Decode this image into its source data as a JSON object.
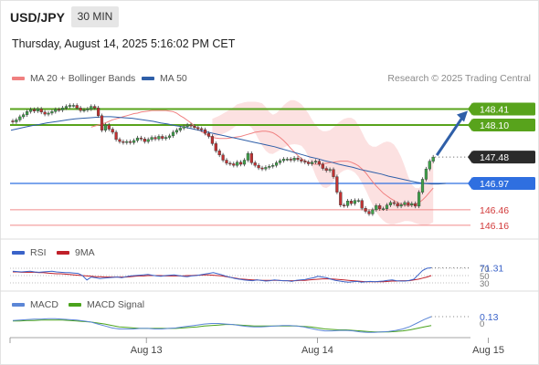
{
  "header": {
    "symbol": "USD/JPY",
    "timeframe": "30 MIN",
    "datetime": "Thursday, August 14, 2025 5:16:02 PM CET"
  },
  "legend": {
    "ma20": "MA 20 + Bollinger Bands",
    "ma50": "MA 50",
    "ma20_color": "#f08080",
    "ma50_color": "#2f5fa8",
    "rsi": "RSI",
    "rsi_ma": "9MA",
    "macd": "MACD",
    "macd_signal": "MACD Signal"
  },
  "credit": "Research © 2025 Trading Central",
  "colors": {
    "resistance": "#58a31c",
    "pivot": "#2f6fe0",
    "support": "#f08a8a",
    "current": "#2b2b2b",
    "up_candle": "#3fa34a",
    "down_candle": "#c03232",
    "arrow": "#2f5fa8",
    "band_fill": "#fcdcdc",
    "rsi_line": "#3a63c9",
    "rsi_ma_line": "#c0202a",
    "macd_line": "#5b86d6",
    "signal_line": "#4aa31c"
  },
  "chart_data": [
    {
      "type": "candlestick",
      "name": "price",
      "ylim": [
        146.0,
        148.6
      ],
      "levels": [
        {
          "value": 148.41,
          "label": "148.41",
          "kind": "resistance"
        },
        {
          "value": 148.1,
          "label": "148.10",
          "kind": "resistance"
        },
        {
          "value": 147.48,
          "label": "147.48",
          "kind": "current"
        },
        {
          "value": 146.97,
          "label": "146.97",
          "kind": "pivot"
        },
        {
          "value": 146.46,
          "label": "146.46",
          "kind": "support"
        },
        {
          "value": 146.16,
          "label": "146.16",
          "kind": "support"
        }
      ],
      "close": [
        148.16,
        148.2,
        148.26,
        148.3,
        148.36,
        148.4,
        148.37,
        148.41,
        148.35,
        148.31,
        148.33,
        148.36,
        148.4,
        148.39,
        148.43,
        148.46,
        148.48,
        148.48,
        148.43,
        148.38,
        148.39,
        148.41,
        148.46,
        148.43,
        148.28,
        148.0,
        148.1,
        148.02,
        147.96,
        147.82,
        147.78,
        147.76,
        147.78,
        147.76,
        147.8,
        147.85,
        147.83,
        147.78,
        147.82,
        147.86,
        147.83,
        147.88,
        147.84,
        147.86,
        147.89,
        147.96,
        148.0,
        148.04,
        148.07,
        148.1,
        148.08,
        148.05,
        148.03,
        148.01,
        147.94,
        147.88,
        147.74,
        147.6,
        147.52,
        147.42,
        147.36,
        147.35,
        147.32,
        147.38,
        147.34,
        147.42,
        147.55,
        147.37,
        147.32,
        147.27,
        147.25,
        147.28,
        147.3,
        147.32,
        147.37,
        147.41,
        147.44,
        147.44,
        147.42,
        147.46,
        147.43,
        147.4,
        147.38,
        147.35,
        147.38,
        147.4,
        147.34,
        147.26,
        147.22,
        147.24,
        147.1,
        146.8,
        146.55,
        146.54,
        146.63,
        146.58,
        146.64,
        146.64,
        146.49,
        146.43,
        146.38,
        146.46,
        146.54,
        146.48,
        146.48,
        146.55,
        146.6,
        146.58,
        146.53,
        146.56,
        146.6,
        146.55,
        146.58,
        146.53,
        146.8,
        147.05,
        147.25,
        147.4,
        147.48
      ],
      "ma20": [
        148.06,
        148.08,
        148.1,
        148.12,
        148.14,
        148.17,
        148.2,
        148.22,
        148.24,
        148.26,
        148.28,
        148.3,
        148.32,
        148.33,
        148.35,
        148.36,
        148.37,
        148.38,
        148.38,
        148.38,
        148.38,
        148.38,
        148.37,
        148.36,
        148.33,
        148.28,
        148.24,
        148.19,
        148.14,
        148.08,
        148.02,
        147.97,
        147.93,
        147.89,
        147.86,
        147.85,
        147.84,
        147.84,
        147.84,
        147.85,
        147.86,
        147.87,
        147.88,
        147.9,
        147.92,
        147.94,
        147.96,
        147.97,
        147.98,
        147.98,
        147.97,
        147.95,
        147.91,
        147.86,
        147.8,
        147.73,
        147.65,
        147.58,
        147.51,
        147.45,
        147.41,
        147.38,
        147.35,
        147.34,
        147.34,
        147.35,
        147.36,
        147.37,
        147.38,
        147.39,
        147.4,
        147.4,
        147.4,
        147.38,
        147.35,
        147.31,
        147.25,
        147.18,
        147.09,
        147.0,
        146.92,
        146.85,
        146.78,
        146.73,
        146.68,
        146.64,
        146.6,
        146.57,
        146.55,
        146.54,
        146.55,
        146.57,
        146.6,
        146.65,
        146.72,
        146.8,
        146.88
      ],
      "ma50": [
        148.0,
        148.03,
        148.06,
        148.09,
        148.11,
        148.14,
        148.16,
        148.18,
        148.2,
        148.22,
        148.23,
        148.24,
        148.25,
        148.26,
        148.26,
        148.25,
        148.24,
        148.23,
        148.21,
        148.19,
        148.17,
        148.14,
        148.12,
        148.09,
        148.07,
        148.04,
        148.01,
        147.98,
        147.95,
        147.92,
        147.89,
        147.86,
        147.83,
        147.8,
        147.77,
        147.74,
        147.71,
        147.68,
        147.64,
        147.6,
        147.56,
        147.52,
        147.48,
        147.45,
        147.41,
        147.38,
        147.34,
        147.31,
        147.28,
        147.24,
        147.21,
        147.18,
        147.15,
        147.11,
        147.08,
        147.05,
        147.02,
        146.99,
        146.97,
        146.96,
        146.96,
        146.97
      ],
      "bb_upper": [
        148.22,
        148.25,
        148.28,
        148.32,
        148.36,
        148.4,
        148.45,
        148.5,
        148.52,
        148.54,
        148.55,
        148.55,
        148.55,
        148.54,
        148.52,
        148.45,
        148.35,
        148.3,
        148.33,
        148.4,
        148.48,
        148.54,
        148.58,
        148.58,
        148.55,
        148.5,
        148.42,
        148.32,
        148.2,
        148.1,
        148.02,
        147.98,
        147.98,
        148.0,
        148.05,
        148.12,
        148.18,
        148.22,
        148.24,
        148.24,
        148.2,
        148.1,
        147.96,
        147.82,
        147.72,
        147.68,
        147.68,
        147.72,
        147.76,
        147.78,
        147.77,
        147.72,
        147.62,
        147.48,
        147.3,
        147.1,
        146.95,
        146.88,
        146.88,
        146.95,
        147.1,
        147.28,
        147.45
      ],
      "bb_lower": [
        147.86,
        147.88,
        147.9,
        147.93,
        147.96,
        148.0,
        148.05,
        148.1,
        148.12,
        148.12,
        148.1,
        148.05,
        147.95,
        147.82,
        147.7,
        147.6,
        147.55,
        147.54,
        147.58,
        147.62,
        147.66,
        147.7,
        147.72,
        147.73,
        147.72,
        147.7,
        147.62,
        147.48,
        147.3,
        147.12,
        146.98,
        146.9,
        146.88,
        146.92,
        147.0,
        147.1,
        147.18,
        147.22,
        147.24,
        147.22,
        147.18,
        147.1,
        146.98,
        146.85,
        146.7,
        146.55,
        146.42,
        146.32,
        146.25,
        146.2,
        146.18,
        146.18,
        146.2,
        146.22,
        146.24,
        146.24,
        146.23,
        146.2,
        146.18,
        146.16,
        146.16,
        146.18,
        146.22
      ],
      "forecast_target": 148.41
    },
    {
      "type": "line",
      "name": "RSI",
      "levels": [
        {
          "value": 70,
          "label": "70"
        },
        {
          "value": 50,
          "label": "50"
        },
        {
          "value": 30,
          "label": "30"
        }
      ],
      "ylim": [
        20,
        85
      ],
      "current_label": "71.31",
      "rsi": [
        62,
        61,
        60,
        61,
        62,
        60,
        59,
        60,
        61,
        62,
        60,
        59,
        58,
        58,
        57,
        56,
        50,
        38,
        46,
        44,
        42,
        43,
        44,
        45,
        46,
        44,
        47,
        49,
        50,
        51,
        52,
        53,
        51,
        49,
        48,
        50,
        51,
        52,
        50,
        48,
        47,
        49,
        50,
        52,
        54,
        56,
        58,
        55,
        52,
        48,
        45,
        42,
        40,
        38,
        37,
        36,
        38,
        37,
        35,
        36,
        38,
        37,
        36,
        36,
        34,
        37,
        38,
        39,
        42,
        44,
        48,
        46,
        44,
        40,
        37,
        35,
        33,
        32,
        33,
        34,
        32,
        33,
        34,
        33,
        34,
        35,
        37,
        38,
        36,
        35,
        35,
        37,
        40,
        52,
        64,
        70,
        71.31
      ],
      "ma9": [
        60,
        60,
        59,
        59,
        59,
        59,
        58,
        58,
        57,
        56,
        55,
        55,
        54,
        53,
        52,
        51,
        50,
        49,
        48,
        47,
        47,
        46,
        46,
        46,
        46,
        46,
        46,
        47,
        48,
        49,
        49,
        50,
        50,
        50,
        50,
        49,
        49,
        49,
        49,
        49,
        50,
        50,
        51,
        51,
        52,
        52,
        51,
        50,
        49,
        47,
        45,
        43,
        41,
        40,
        39,
        38,
        38,
        37,
        37,
        37,
        37,
        37,
        36,
        36,
        36,
        36,
        37,
        37,
        38,
        39,
        40,
        41,
        41,
        41,
        40,
        39,
        38,
        37,
        36,
        35,
        34,
        33,
        33,
        33,
        33,
        33,
        34,
        35,
        35,
        36,
        36,
        36,
        38,
        40,
        43,
        46,
        50
      ]
    },
    {
      "type": "line",
      "name": "MACD",
      "levels": [
        {
          "value": 0,
          "label": "0"
        }
      ],
      "ylim": [
        -0.35,
        0.22
      ],
      "current_label": "0.13",
      "macd": [
        0.05,
        0.06,
        0.07,
        0.08,
        0.08,
        0.09,
        0.09,
        0.08,
        0.07,
        0.06,
        0.04,
        0.02,
        -0.02,
        -0.06,
        -0.1,
        -0.12,
        -0.12,
        -0.12,
        -0.11,
        -0.11,
        -0.12,
        -0.12,
        -0.11,
        -0.1,
        -0.08,
        -0.06,
        -0.04,
        -0.02,
        -0.01,
        -0.01,
        -0.02,
        -0.03,
        -0.05,
        -0.07,
        -0.08,
        -0.08,
        -0.07,
        -0.06,
        -0.05,
        -0.05,
        -0.06,
        -0.08,
        -0.11,
        -0.14,
        -0.16,
        -0.16,
        -0.15,
        -0.15,
        -0.16,
        -0.18,
        -0.19,
        -0.19,
        -0.18,
        -0.17,
        -0.15,
        -0.12,
        -0.07,
        0.0,
        0.07,
        0.13
      ],
      "signal": [
        0.04,
        0.04,
        0.05,
        0.05,
        0.06,
        0.06,
        0.06,
        0.06,
        0.05,
        0.04,
        0.03,
        0.02,
        0.0,
        -0.02,
        -0.05,
        -0.08,
        -0.09,
        -0.1,
        -0.11,
        -0.11,
        -0.11,
        -0.11,
        -0.11,
        -0.11,
        -0.1,
        -0.09,
        -0.08,
        -0.06,
        -0.05,
        -0.04,
        -0.03,
        -0.03,
        -0.04,
        -0.05,
        -0.06,
        -0.06,
        -0.06,
        -0.06,
        -0.06,
        -0.06,
        -0.06,
        -0.07,
        -0.08,
        -0.1,
        -0.12,
        -0.13,
        -0.14,
        -0.14,
        -0.15,
        -0.16,
        -0.17,
        -0.18,
        -0.18,
        -0.18,
        -0.17,
        -0.16,
        -0.14,
        -0.11,
        -0.08,
        -0.05
      ]
    },
    {
      "type": "axis",
      "name": "x-axis",
      "labels": [
        {
          "label": "Aug 13",
          "bar": 38
        },
        {
          "label": "Aug 14",
          "bar": 86
        },
        {
          "label": "Aug 15",
          "bar": 134
        }
      ]
    }
  ]
}
